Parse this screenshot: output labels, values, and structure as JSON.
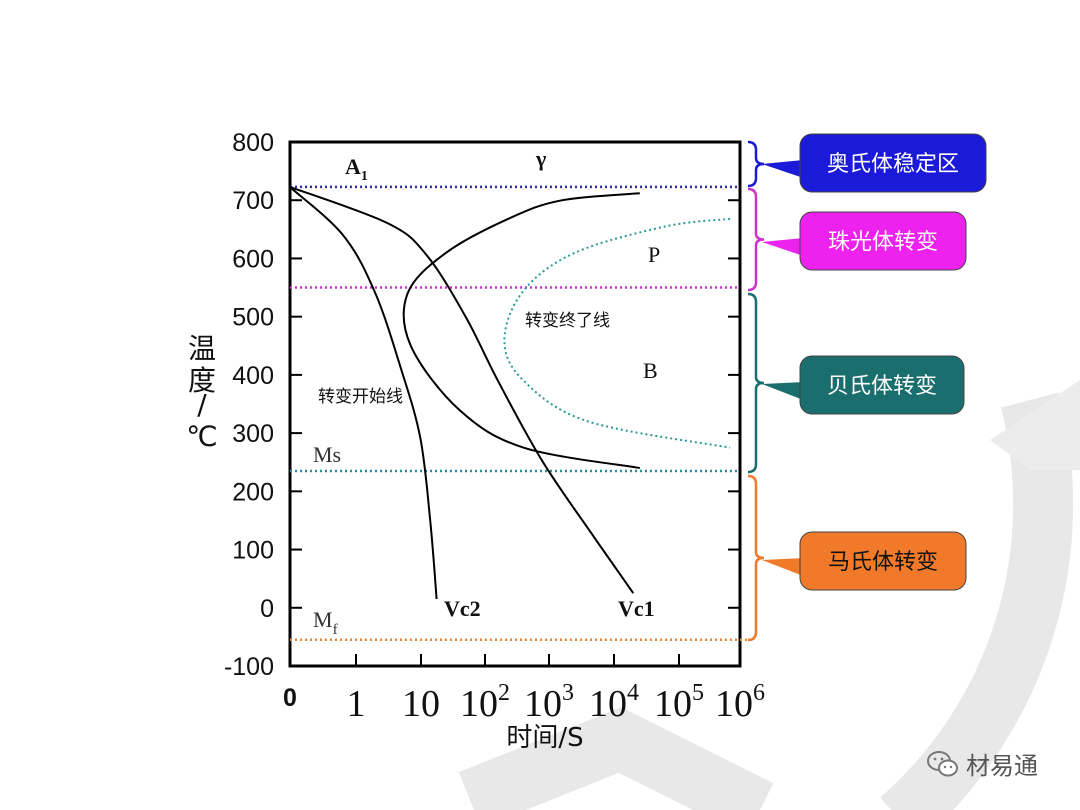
{
  "chart_data": {
    "type": "line",
    "ylabel": "温度/℃",
    "xlabel": "时间/S",
    "ylim": [
      -100,
      800
    ],
    "y_ticks": [
      800,
      700,
      600,
      500,
      400,
      300,
      200,
      100,
      0,
      -100
    ],
    "x_ticks": [
      {
        "base": "0",
        "exp": ""
      },
      {
        "base": "1",
        "exp": ""
      },
      {
        "base": "10",
        "exp": ""
      },
      {
        "base": "10",
        "exp": "2"
      },
      {
        "base": "10",
        "exp": "3"
      },
      {
        "base": "10",
        "exp": "4"
      },
      {
        "base": "10",
        "exp": "5"
      },
      {
        "base": "10",
        "exp": "6"
      }
    ],
    "x_scale": "log",
    "reference_lines": [
      {
        "name": "A1",
        "label_main": "A",
        "label_sub": "1",
        "y": 723,
        "color": "#2a2aa8"
      },
      {
        "name": "pearlite-bainite-boundary",
        "y": 550,
        "color": "#cc33cc"
      },
      {
        "name": "Ms",
        "label_main": "Ms",
        "label_sub": "",
        "y": 235,
        "color": "#2a8a9a"
      },
      {
        "name": "Mf",
        "label_main": "M",
        "label_sub": "f",
        "y": -55,
        "color": "#e08a3a"
      }
    ],
    "regions": [
      {
        "label": "γ"
      },
      {
        "label": "P"
      },
      {
        "label": "B"
      }
    ],
    "curves": [
      {
        "name": "start-line",
        "label": "转变开始线",
        "style": "solid"
      },
      {
        "name": "finish-line",
        "label": "转变终了线",
        "style": "dotted"
      },
      {
        "name": "Vc1",
        "label": "Vc1",
        "style": "solid"
      },
      {
        "name": "Vc2",
        "label": "Vc2",
        "style": "solid"
      }
    ],
    "callouts": [
      {
        "label": "奥氏体稳定区",
        "color": "#1a1ad8"
      },
      {
        "label": "珠光体转变",
        "color": "#ee22ee"
      },
      {
        "label": "贝氏体转变",
        "color": "#1a6e6e"
      },
      {
        "label": "马氏体转变",
        "color": "#f07a2a"
      }
    ],
    "bracket_colors": [
      "#1a1ad8",
      "#cc33cc",
      "#1a6e6e",
      "#f07a2a"
    ]
  },
  "brand": {
    "label": "材易通"
  }
}
